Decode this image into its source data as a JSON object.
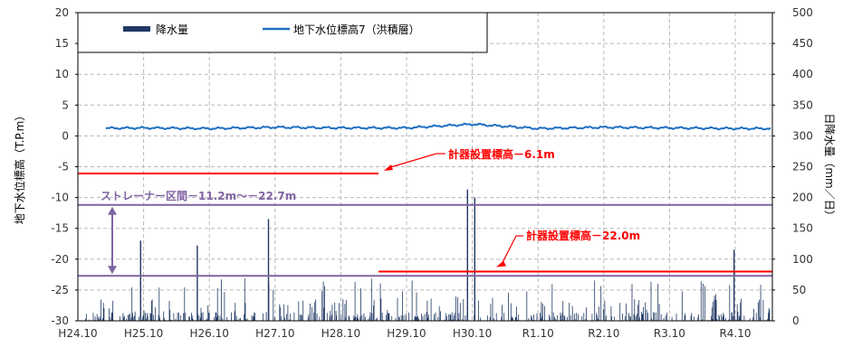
{
  "chart_data": {
    "type": "bar+line",
    "left_axis": {
      "label": "地下水位標高（T.P.m）",
      "range": [
        -30,
        20
      ],
      "ticks": [
        20,
        15,
        10,
        5,
        0,
        -5,
        -10,
        -15,
        -20,
        -25,
        -30
      ]
    },
    "right_axis": {
      "label": "日降水量（mm／日）",
      "range": [
        0,
        500
      ],
      "ticks": [
        500,
        450,
        400,
        350,
        300,
        250,
        200,
        150,
        100,
        50,
        0
      ]
    },
    "x_ticks": [
      "H24.10",
      "H25.10",
      "H26.10",
      "H27.10",
      "H28.10",
      "H29.10",
      "H30.10",
      "R1.10",
      "R2.10",
      "R3.10",
      "R4.10"
    ],
    "grid": true,
    "legend": {
      "placement": "top-left",
      "items": [
        {
          "name": "降水量",
          "color": "#1f3864"
        },
        {
          "name": "地下水位標高7（洪積層）",
          "color": "#1f6fc1"
        }
      ]
    },
    "series": [
      {
        "name": "降水量",
        "kind": "bar",
        "axis": "right",
        "color": "#1f3864",
        "unit": "mm/日",
        "peaks": [
          {
            "x": "H25.10",
            "value": 130
          },
          {
            "x": "H26.10",
            "value": 122
          },
          {
            "x": "H27.10",
            "value": 165
          },
          {
            "x": "H30.10",
            "value": 213
          },
          {
            "x": "H30.10",
            "value": 200
          },
          {
            "x": "R4.10",
            "value": 115
          }
        ]
      },
      {
        "name": "地下水位標高7（洪積層）",
        "kind": "line",
        "axis": "left",
        "color": "#1f6fc1",
        "unit": "T.P.m",
        "x": [
          "H24.10",
          "H25.10",
          "H26.10",
          "H27.10",
          "H28.10",
          "H29.10",
          "H30.10",
          "R1.10",
          "R2.10",
          "R3.10",
          "R4.10"
        ],
        "values": [
          1.2,
          1.3,
          1.2,
          1.4,
          1.3,
          1.3,
          1.9,
          1.2,
          1.4,
          1.3,
          1.2
        ]
      }
    ],
    "annotations": [
      {
        "id": "sensor1",
        "text": "計器設置標高－6.1m",
        "value": -6.1,
        "color": "#ff0000"
      },
      {
        "id": "sensor2",
        "text": "計器設置標高－22.0m",
        "value": -22.0,
        "color": "#ff0000"
      },
      {
        "id": "screen",
        "text": "ストレーナー区間－11.2m～－22.7m",
        "top": -11.2,
        "bottom": -22.7,
        "color": "#8064a2"
      }
    ]
  }
}
